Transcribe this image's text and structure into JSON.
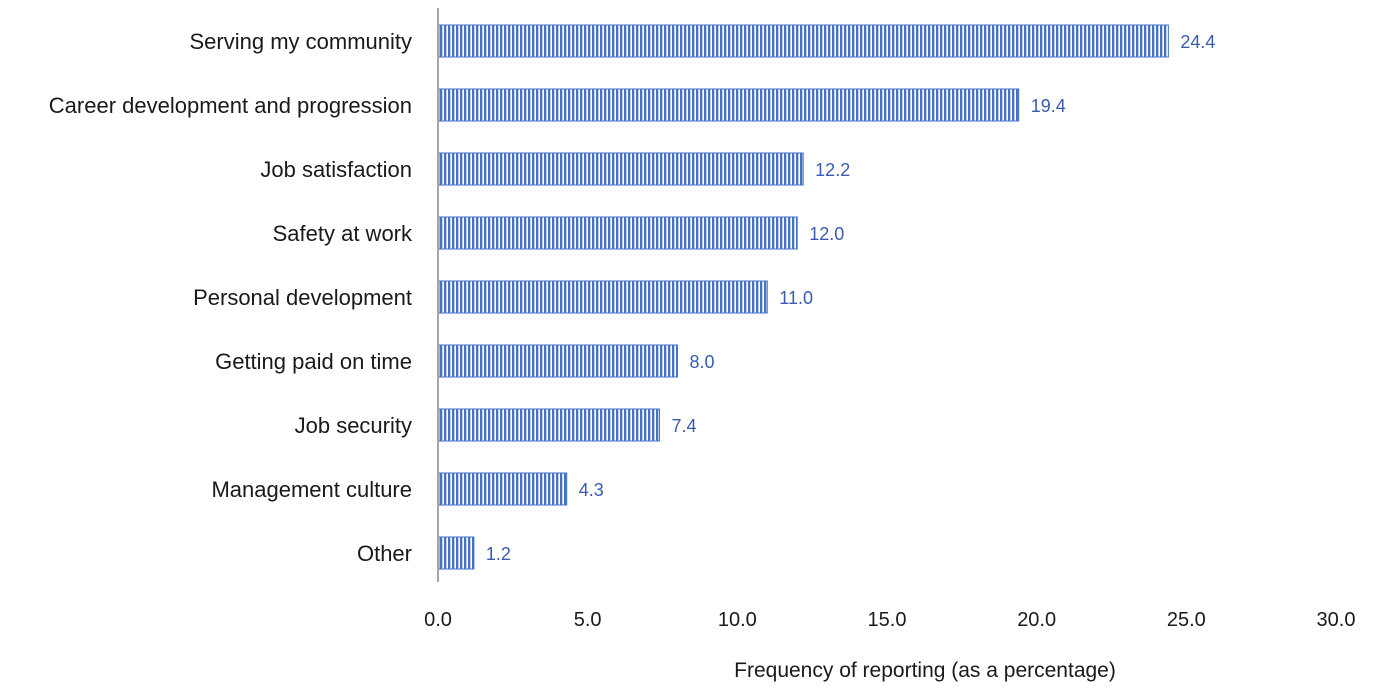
{
  "chart_data": {
    "type": "bar",
    "orientation": "horizontal",
    "categories": [
      "Serving my community",
      "Career development and progression",
      "Job satisfaction",
      "Safety at work",
      "Personal development",
      "Getting paid on time",
      "Job security",
      "Management culture",
      "Other"
    ],
    "values": [
      24.4,
      19.4,
      12.2,
      12.0,
      11.0,
      8.0,
      7.4,
      4.3,
      1.2
    ],
    "data_labels": [
      "24.4",
      "19.4",
      "12.2",
      "12.0",
      "11.0",
      "8.0",
      "7.4",
      "4.3",
      "1.2"
    ],
    "xticks": [
      0,
      5,
      10,
      15,
      20,
      25,
      30
    ],
    "xtick_labels": [
      "0.0",
      "5.0",
      "10.0",
      "15.0",
      "20.0",
      "25.0",
      "30.0"
    ],
    "xlim": [
      0,
      30
    ],
    "xlabel": "Frequency of reporting (as a percentage)",
    "ylabel": "",
    "title": "",
    "grid": false,
    "legend": "none",
    "colors": {
      "bar_stripe": "#4472c4",
      "bar_gap": "#ffffff",
      "data_label": "#3a5bb0",
      "axis_line": "#a6a6a6"
    }
  }
}
